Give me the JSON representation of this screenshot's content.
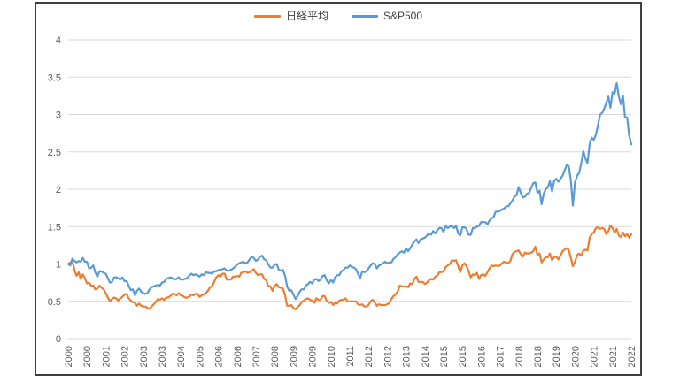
{
  "chart": {
    "legend": [
      {
        "name": "日経平均",
        "color": "#ED7D31"
      },
      {
        "name": "S&P500",
        "color": "#5B9BD5"
      }
    ]
  },
  "chart_data": {
    "type": "line",
    "title": "",
    "xlabel": "",
    "ylabel": "",
    "x_unit": "month",
    "x_start": "2000-01",
    "x_end": "2022-07",
    "ylim": [
      0,
      4
    ],
    "y_ticks": [
      0,
      0.5,
      1,
      1.5,
      2,
      2.5,
      3,
      3.5,
      4
    ],
    "grid": true,
    "legend_position": "top-center",
    "x_tick_interval": 9,
    "x_tick_labels": [
      "2000",
      "2000",
      "2001",
      "2002",
      "2003",
      "2003",
      "2004",
      "2005",
      "2006",
      "2006",
      "2007",
      "2008",
      "2009",
      "2009",
      "2010",
      "2011",
      "2012",
      "2012",
      "2013",
      "2014",
      "2015",
      "2015",
      "2016",
      "2017",
      "2018",
      "2018",
      "2019",
      "2020",
      "2021",
      "2021",
      "2022"
    ],
    "series": [
      {
        "name": "日経平均",
        "color": "#ED7D31",
        "values": [
          1.0,
          1.02,
          1.04,
          0.92,
          0.84,
          0.89,
          0.8,
          0.86,
          0.81,
          0.74,
          0.75,
          0.71,
          0.71,
          0.66,
          0.67,
          0.71,
          0.68,
          0.66,
          0.61,
          0.55,
          0.5,
          0.53,
          0.55,
          0.54,
          0.51,
          0.54,
          0.56,
          0.59,
          0.6,
          0.54,
          0.51,
          0.49,
          0.48,
          0.44,
          0.47,
          0.44,
          0.43,
          0.43,
          0.41,
          0.4,
          0.43,
          0.46,
          0.49,
          0.53,
          0.52,
          0.54,
          0.52,
          0.55,
          0.55,
          0.57,
          0.6,
          0.6,
          0.58,
          0.61,
          0.58,
          0.57,
          0.55,
          0.55,
          0.56,
          0.59,
          0.58,
          0.6,
          0.6,
          0.56,
          0.58,
          0.59,
          0.61,
          0.64,
          0.69,
          0.7,
          0.76,
          0.82,
          0.85,
          0.83,
          0.87,
          0.87,
          0.79,
          0.79,
          0.79,
          0.83,
          0.83,
          0.84,
          0.83,
          0.88,
          0.89,
          0.9,
          0.88,
          0.89,
          0.91,
          0.93,
          0.88,
          0.85,
          0.86,
          0.86,
          0.8,
          0.78,
          0.7,
          0.7,
          0.64,
          0.71,
          0.73,
          0.69,
          0.68,
          0.67,
          0.58,
          0.44,
          0.44,
          0.45,
          0.41,
          0.39,
          0.42,
          0.45,
          0.49,
          0.51,
          0.53,
          0.54,
          0.52,
          0.51,
          0.48,
          0.54,
          0.52,
          0.52,
          0.57,
          0.57,
          0.5,
          0.48,
          0.49,
          0.45,
          0.48,
          0.47,
          0.51,
          0.52,
          0.52,
          0.54,
          0.5,
          0.5,
          0.5,
          0.5,
          0.5,
          0.46,
          0.45,
          0.46,
          0.43,
          0.43,
          0.45,
          0.5,
          0.52,
          0.49,
          0.44,
          0.46,
          0.45,
          0.45,
          0.45,
          0.46,
          0.48,
          0.53,
          0.57,
          0.59,
          0.63,
          0.71,
          0.7,
          0.7,
          0.7,
          0.69,
          0.74,
          0.73,
          0.8,
          0.83,
          0.76,
          0.76,
          0.76,
          0.73,
          0.75,
          0.78,
          0.8,
          0.79,
          0.83,
          0.84,
          0.89,
          0.89,
          0.9,
          0.96,
          0.98,
          1.0,
          1.05,
          1.04,
          1.05,
          0.97,
          0.89,
          0.98,
          1.01,
          0.97,
          0.9,
          0.82,
          0.86,
          0.85,
          0.88,
          0.8,
          0.85,
          0.86,
          0.84,
          0.89,
          0.94,
          0.98,
          0.97,
          0.98,
          0.97,
          0.98,
          1.01,
          1.03,
          1.02,
          1.01,
          1.04,
          1.13,
          1.16,
          1.17,
          1.18,
          1.13,
          1.1,
          1.15,
          1.14,
          1.14,
          1.15,
          1.17,
          1.23,
          1.12,
          1.14,
          1.02,
          1.06,
          1.09,
          1.09,
          1.14,
          1.05,
          1.09,
          1.1,
          1.06,
          1.11,
          1.17,
          1.19,
          1.21,
          1.19,
          1.08,
          0.97,
          1.03,
          1.12,
          1.14,
          1.11,
          1.18,
          1.19,
          1.18,
          1.35,
          1.4,
          1.42,
          1.48,
          1.49,
          1.47,
          1.48,
          1.47,
          1.4,
          1.44,
          1.51,
          1.48,
          1.42,
          1.47,
          1.38,
          1.36,
          1.42,
          1.37,
          1.4,
          1.35,
          1.4
        ]
      },
      {
        "name": "S&P500",
        "color": "#5B9BD5",
        "values": [
          1.0,
          0.98,
          1.07,
          1.04,
          1.02,
          1.04,
          1.03,
          1.08,
          1.03,
          1.03,
          0.94,
          0.95,
          0.98,
          0.89,
          0.83,
          0.9,
          0.9,
          0.88,
          0.87,
          0.81,
          0.75,
          0.76,
          0.82,
          0.82,
          0.81,
          0.79,
          0.82,
          0.77,
          0.77,
          0.71,
          0.65,
          0.66,
          0.58,
          0.64,
          0.67,
          0.63,
          0.61,
          0.6,
          0.61,
          0.66,
          0.69,
          0.7,
          0.71,
          0.72,
          0.71,
          0.75,
          0.76,
          0.8,
          0.81,
          0.82,
          0.81,
          0.79,
          0.8,
          0.82,
          0.79,
          0.79,
          0.8,
          0.81,
          0.84,
          0.87,
          0.85,
          0.86,
          0.85,
          0.83,
          0.86,
          0.85,
          0.89,
          0.88,
          0.88,
          0.87,
          0.9,
          0.9,
          0.92,
          0.92,
          0.93,
          0.94,
          0.91,
          0.91,
          0.92,
          0.94,
          0.96,
          0.99,
          1.01,
          1.02,
          1.03,
          1.01,
          1.02,
          1.06,
          1.1,
          1.08,
          1.04,
          1.06,
          1.1,
          1.11,
          1.06,
          1.05,
          0.99,
          0.95,
          0.95,
          0.99,
          1.0,
          0.92,
          0.91,
          0.92,
          0.84,
          0.7,
          0.64,
          0.65,
          0.59,
          0.53,
          0.57,
          0.63,
          0.66,
          0.66,
          0.71,
          0.73,
          0.76,
          0.74,
          0.79,
          0.8,
          0.77,
          0.79,
          0.84,
          0.85,
          0.78,
          0.74,
          0.79,
          0.75,
          0.82,
          0.85,
          0.85,
          0.9,
          0.92,
          0.95,
          0.95,
          0.98,
          0.96,
          0.95,
          0.93,
          0.87,
          0.81,
          0.9,
          0.89,
          0.9,
          0.94,
          0.98,
          1.01,
          1.0,
          0.94,
          0.98,
          0.99,
          1.01,
          1.03,
          1.01,
          1.02,
          1.02,
          1.07,
          1.09,
          1.13,
          1.15,
          1.17,
          1.15,
          1.21,
          1.17,
          1.21,
          1.26,
          1.3,
          1.33,
          1.28,
          1.33,
          1.34,
          1.35,
          1.38,
          1.41,
          1.39,
          1.44,
          1.41,
          1.45,
          1.48,
          1.48,
          1.43,
          1.51,
          1.48,
          1.5,
          1.51,
          1.48,
          1.51,
          1.41,
          1.38,
          1.49,
          1.49,
          1.47,
          1.39,
          1.39,
          1.48,
          1.48,
          1.5,
          1.51,
          1.56,
          1.56,
          1.56,
          1.53,
          1.58,
          1.61,
          1.63,
          1.7,
          1.7,
          1.71,
          1.73,
          1.74,
          1.77,
          1.77,
          1.81,
          1.85,
          1.9,
          1.92,
          2.03,
          1.95,
          1.89,
          1.9,
          1.94,
          1.95,
          2.02,
          2.08,
          2.09,
          1.95,
          1.98,
          1.8,
          1.94,
          2.0,
          2.03,
          2.11,
          1.97,
          2.11,
          2.14,
          2.1,
          2.14,
          2.18,
          2.25,
          2.32,
          2.31,
          2.12,
          1.78,
          2.09,
          2.18,
          2.22,
          2.35,
          2.51,
          2.41,
          2.35,
          2.6,
          2.69,
          2.66,
          2.73,
          2.85,
          3.0,
          3.02,
          3.08,
          3.15,
          3.24,
          3.09,
          3.3,
          3.28,
          3.42,
          3.24,
          3.14,
          3.25,
          2.96,
          2.96,
          2.72,
          2.6
        ]
      }
    ]
  }
}
